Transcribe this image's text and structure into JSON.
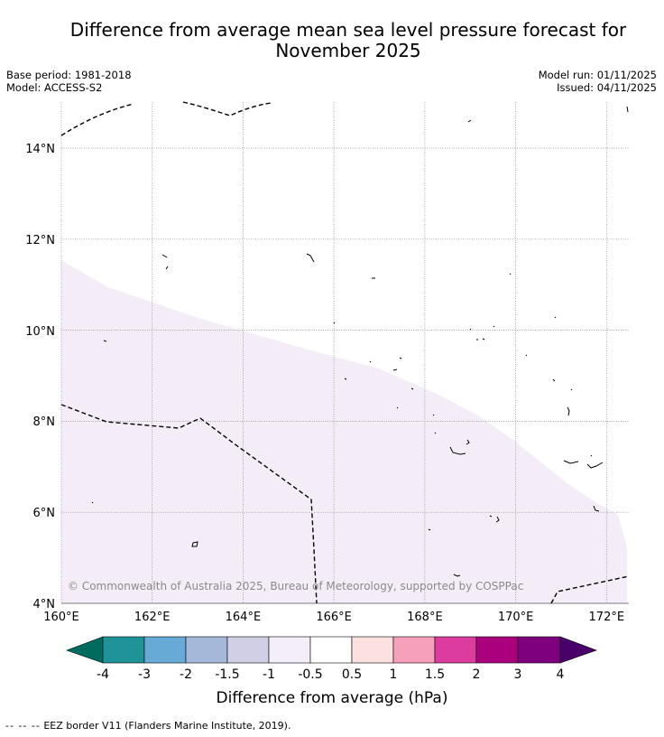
{
  "title_line1": "Difference from average mean sea level pressure forecast for",
  "title_line2": "November 2025",
  "base_period": "Base period: 1981-2018",
  "model": "Model: ACCESS-S2",
  "model_run": "Model run: 01/11/2025",
  "issued": "Issued: 04/11/2025",
  "lat_labels": [
    "14°N",
    "12°N",
    "10°N",
    "8°N",
    "6°N",
    "4°N"
  ],
  "lon_labels": [
    "160°E",
    "162°E",
    "164°E",
    "166°E",
    "168°E",
    "170°E",
    "172°E"
  ],
  "copyright": "© Commonwealth of Australia 2025, Bureau of Meteorology, supported by COSPPac",
  "colorbar": {
    "label": "Difference from average (hPa)",
    "ticks": [
      "-4",
      "-3",
      "-2",
      "-1.5",
      "-1",
      "-0.5",
      "0.5",
      "1",
      "1.5",
      "2",
      "3",
      "4"
    ],
    "colors": [
      "#006c5f",
      "#1e9398",
      "#67aad6",
      "#a6b8da",
      "#d1cfe5",
      "#f4eef8",
      "#ffffff",
      "#fde0e0",
      "#f6a0bc",
      "#dc3c9e",
      "#ab007e",
      "#7f007f",
      "#4a006a"
    ]
  },
  "map_colors": {
    "anomaly_area": "#f4edf7",
    "grid": "#888888"
  },
  "legend_marker": "-- -- --",
  "legend_text": "EEZ border V11 (Flanders Marine Institute, 2019)."
}
